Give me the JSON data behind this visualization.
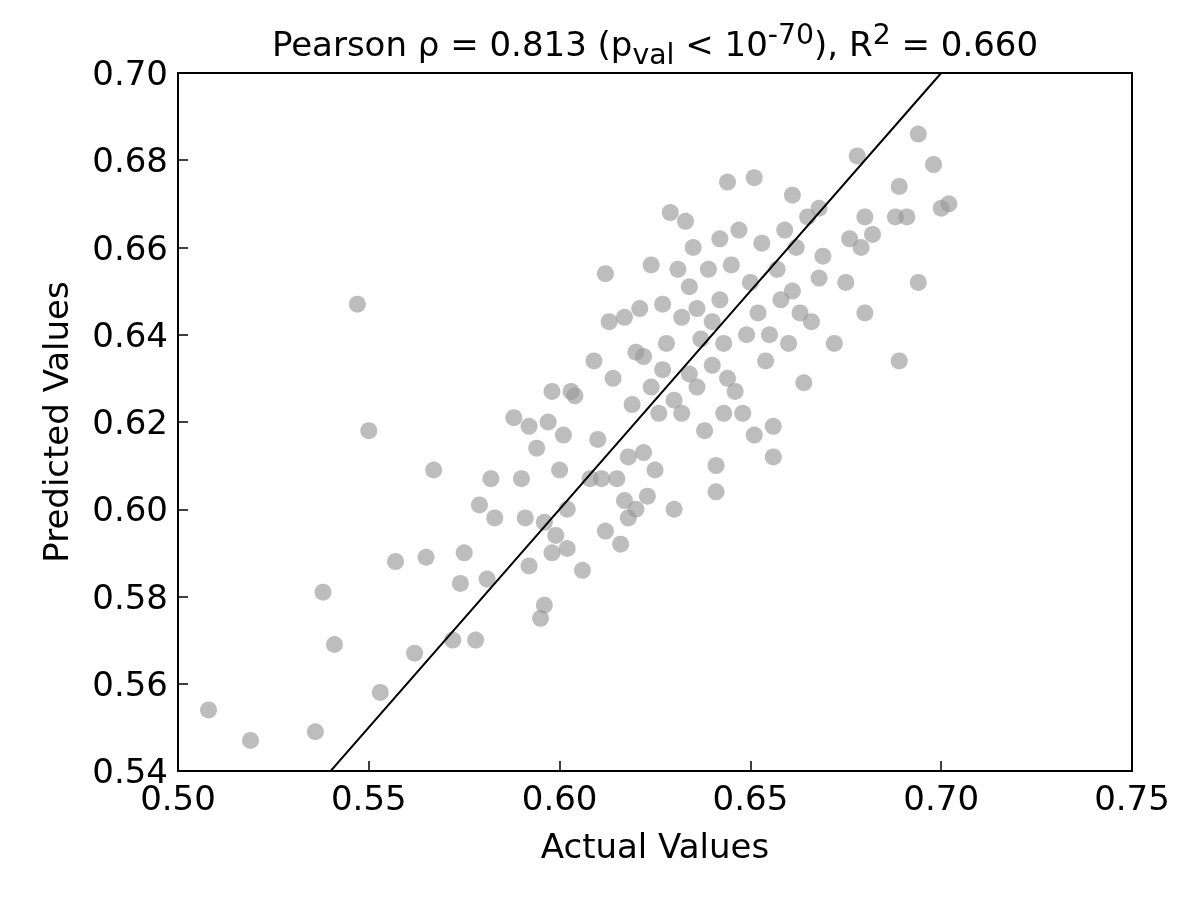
{
  "chart_data": {
    "type": "scatter",
    "title": "Pearson ρ = 0.813 (p$_{val}$ < 10$^{-70}$), R$^{2}$ = 0.660",
    "xlabel": "Actual Values",
    "ylabel": "Predicted Values",
    "xlim": [
      0.5,
      0.75
    ],
    "ylim": [
      0.54,
      0.7
    ],
    "xticks": [
      {
        "value": 0.5,
        "label": "0.50"
      },
      {
        "value": 0.55,
        "label": "0.55"
      },
      {
        "value": 0.6,
        "label": "0.60"
      },
      {
        "value": 0.65,
        "label": "0.65"
      },
      {
        "value": 0.7,
        "label": "0.70"
      },
      {
        "value": 0.75,
        "label": "0.75"
      }
    ],
    "yticks": [
      {
        "value": 0.54,
        "label": "0.54"
      },
      {
        "value": 0.56,
        "label": "0.56"
      },
      {
        "value": 0.58,
        "label": "0.58"
      },
      {
        "value": 0.6,
        "label": "0.60"
      },
      {
        "value": 0.62,
        "label": "0.62"
      },
      {
        "value": 0.64,
        "label": "0.64"
      },
      {
        "value": 0.66,
        "label": "0.66"
      },
      {
        "value": 0.68,
        "label": "0.68"
      },
      {
        "value": 0.7,
        "label": "0.70"
      }
    ],
    "series": [
      {
        "marker": "circle",
        "color": "#999999",
        "x": [
          0.508,
          0.519,
          0.536,
          0.538,
          0.541,
          0.547,
          0.55,
          0.553,
          0.557,
          0.562,
          0.565,
          0.567,
          0.572,
          0.574,
          0.575,
          0.578,
          0.579,
          0.581,
          0.582,
          0.583,
          0.588,
          0.59,
          0.591,
          0.592,
          0.592,
          0.594,
          0.595,
          0.596,
          0.596,
          0.597,
          0.598,
          0.598,
          0.599,
          0.6,
          0.601,
          0.602,
          0.602,
          0.603,
          0.604,
          0.606,
          0.608,
          0.609,
          0.61,
          0.611,
          0.612,
          0.612,
          0.613,
          0.614,
          0.615,
          0.616,
          0.617,
          0.617,
          0.618,
          0.618,
          0.619,
          0.62,
          0.62,
          0.621,
          0.622,
          0.622,
          0.623,
          0.624,
          0.624,
          0.625,
          0.626,
          0.627,
          0.627,
          0.628,
          0.629,
          0.63,
          0.63,
          0.631,
          0.632,
          0.632,
          0.633,
          0.634,
          0.634,
          0.635,
          0.636,
          0.636,
          0.637,
          0.638,
          0.639,
          0.64,
          0.64,
          0.641,
          0.641,
          0.642,
          0.642,
          0.643,
          0.643,
          0.644,
          0.644,
          0.645,
          0.646,
          0.647,
          0.648,
          0.649,
          0.65,
          0.651,
          0.651,
          0.652,
          0.653,
          0.654,
          0.655,
          0.656,
          0.656,
          0.657,
          0.658,
          0.659,
          0.66,
          0.661,
          0.661,
          0.662,
          0.663,
          0.664,
          0.665,
          0.666,
          0.668,
          0.668,
          0.669,
          0.672,
          0.675,
          0.676,
          0.678,
          0.679,
          0.68,
          0.68,
          0.682,
          0.688,
          0.689,
          0.689,
          0.691,
          0.694,
          0.694,
          0.698,
          0.7,
          0.702
        ],
        "values": [
          0.554,
          0.547,
          0.549,
          0.581,
          0.569,
          0.647,
          0.618,
          0.558,
          0.588,
          0.567,
          0.589,
          0.609,
          0.57,
          0.583,
          0.59,
          0.57,
          0.601,
          0.584,
          0.607,
          0.598,
          0.621,
          0.607,
          0.598,
          0.587,
          0.619,
          0.614,
          0.575,
          0.578,
          0.597,
          0.62,
          0.627,
          0.59,
          0.594,
          0.609,
          0.617,
          0.591,
          0.6,
          0.627,
          0.626,
          0.586,
          0.607,
          0.634,
          0.616,
          0.607,
          0.654,
          0.595,
          0.643,
          0.63,
          0.607,
          0.592,
          0.644,
          0.602,
          0.612,
          0.598,
          0.624,
          0.636,
          0.6,
          0.646,
          0.635,
          0.613,
          0.603,
          0.656,
          0.628,
          0.609,
          0.622,
          0.647,
          0.632,
          0.638,
          0.668,
          0.6,
          0.625,
          0.655,
          0.644,
          0.622,
          0.666,
          0.651,
          0.631,
          0.66,
          0.628,
          0.646,
          0.639,
          0.618,
          0.655,
          0.643,
          0.633,
          0.604,
          0.61,
          0.662,
          0.648,
          0.622,
          0.638,
          0.675,
          0.63,
          0.656,
          0.627,
          0.664,
          0.622,
          0.64,
          0.652,
          0.676,
          0.617,
          0.645,
          0.661,
          0.634,
          0.64,
          0.612,
          0.619,
          0.655,
          0.648,
          0.664,
          0.638,
          0.65,
          0.672,
          0.66,
          0.645,
          0.629,
          0.667,
          0.643,
          0.653,
          0.669,
          0.658,
          0.638,
          0.652,
          0.662,
          0.681,
          0.66,
          0.667,
          0.645,
          0.663,
          0.667,
          0.674,
          0.634,
          0.667,
          0.652,
          0.686,
          0.679,
          0.669,
          0.67
        ]
      },
      {
        "type": "line",
        "marker": "none",
        "line_style": "solid",
        "color": "#000000",
        "x": [
          0.54,
          0.7
        ],
        "values": [
          0.54,
          0.7
        ]
      }
    ]
  }
}
